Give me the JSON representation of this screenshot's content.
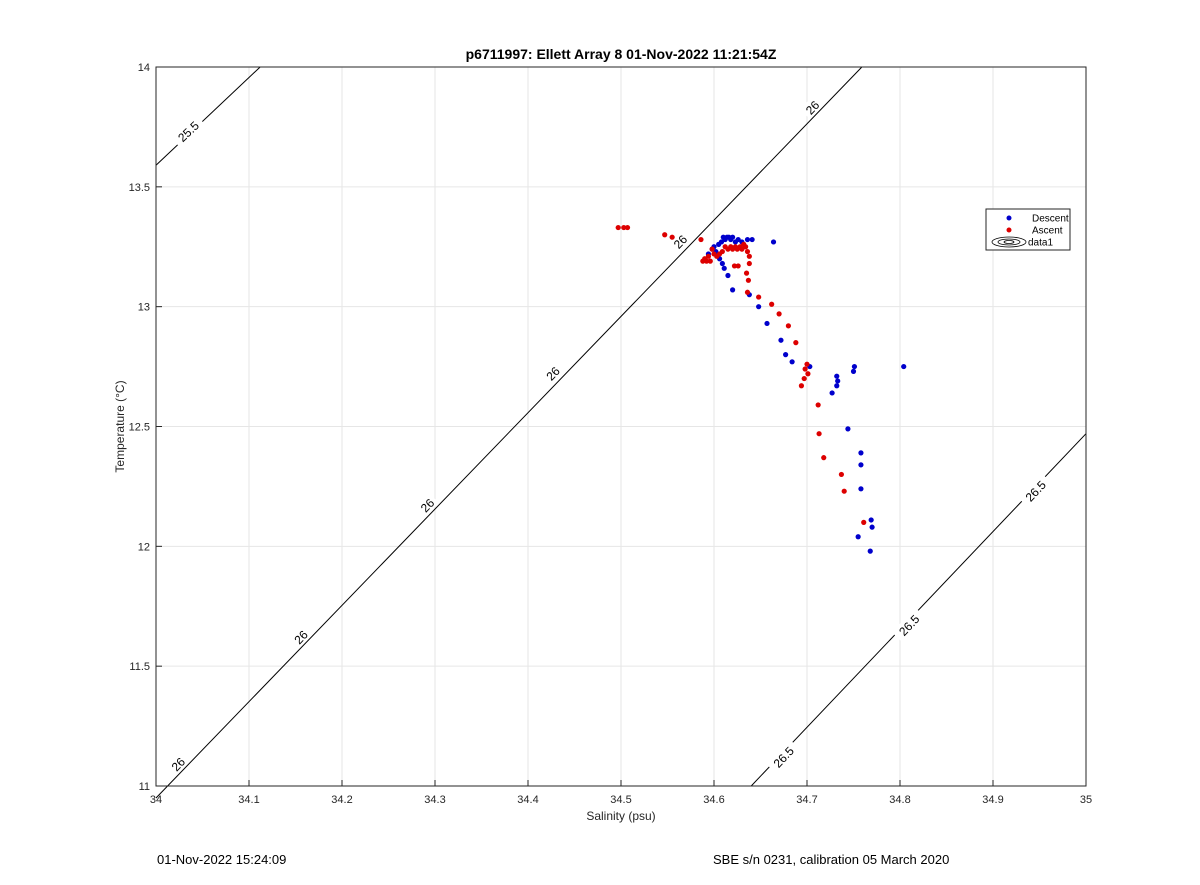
{
  "chart_data": {
    "type": "scatter",
    "title": "p6711997: Ellett Array 8 01-Nov-2022 11:21:54Z",
    "xlabel": "Salinity (psu)",
    "ylabel": "Temperature (°C)",
    "xlim": [
      34,
      35
    ],
    "ylim": [
      11,
      14
    ],
    "xticks": [
      "34",
      "34.1",
      "34.2",
      "34.3",
      "34.4",
      "34.5",
      "34.6",
      "34.7",
      "34.8",
      "34.9",
      "35"
    ],
    "yticks": [
      "11",
      "11.5",
      "12",
      "12.5",
      "13",
      "13.5",
      "14"
    ],
    "grid": true,
    "legend_position": "right",
    "legend": [
      "Descent",
      "Ascent",
      "data1"
    ],
    "series": [
      {
        "name": "Descent",
        "color": "#0000cc",
        "points": [
          [
            34.594,
            13.22
          ],
          [
            34.598,
            13.24
          ],
          [
            34.6,
            13.25
          ],
          [
            34.602,
            13.23
          ],
          [
            34.605,
            13.26
          ],
          [
            34.608,
            13.27
          ],
          [
            34.61,
            13.29
          ],
          [
            34.612,
            13.28
          ],
          [
            34.614,
            13.29
          ],
          [
            34.616,
            13.29
          ],
          [
            34.618,
            13.28
          ],
          [
            34.62,
            13.29
          ],
          [
            34.623,
            13.27
          ],
          [
            34.626,
            13.28
          ],
          [
            34.63,
            13.27
          ],
          [
            34.636,
            13.28
          ],
          [
            34.641,
            13.28
          ],
          [
            34.664,
            13.27
          ],
          [
            34.606,
            13.2
          ],
          [
            34.609,
            13.18
          ],
          [
            34.611,
            13.16
          ],
          [
            34.615,
            13.13
          ],
          [
            34.62,
            13.07
          ],
          [
            34.638,
            13.05
          ],
          [
            34.648,
            13.0
          ],
          [
            34.657,
            12.93
          ],
          [
            34.672,
            12.86
          ],
          [
            34.677,
            12.8
          ],
          [
            34.684,
            12.77
          ],
          [
            34.703,
            12.75
          ],
          [
            34.732,
            12.71
          ],
          [
            34.733,
            12.69
          ],
          [
            34.732,
            12.67
          ],
          [
            34.727,
            12.64
          ],
          [
            34.751,
            12.75
          ],
          [
            34.75,
            12.73
          ],
          [
            34.804,
            12.75
          ],
          [
            34.744,
            12.49
          ],
          [
            34.758,
            12.39
          ],
          [
            34.758,
            12.34
          ],
          [
            34.758,
            12.24
          ],
          [
            34.769,
            12.11
          ],
          [
            34.77,
            12.08
          ],
          [
            34.755,
            12.04
          ],
          [
            34.768,
            11.98
          ]
        ]
      },
      {
        "name": "Ascent",
        "color": "#dd0000",
        "points": [
          [
            34.497,
            13.33
          ],
          [
            34.503,
            13.33
          ],
          [
            34.507,
            13.33
          ],
          [
            34.547,
            13.3
          ],
          [
            34.555,
            13.29
          ],
          [
            34.586,
            13.28
          ],
          [
            34.588,
            13.19
          ],
          [
            34.59,
            13.2
          ],
          [
            34.592,
            13.19
          ],
          [
            34.594,
            13.21
          ],
          [
            34.596,
            13.19
          ],
          [
            34.598,
            13.24
          ],
          [
            34.6,
            13.22
          ],
          [
            34.603,
            13.21
          ],
          [
            34.606,
            13.22
          ],
          [
            34.609,
            13.23
          ],
          [
            34.612,
            13.25
          ],
          [
            34.615,
            13.24
          ],
          [
            34.618,
            13.25
          ],
          [
            34.62,
            13.24
          ],
          [
            34.623,
            13.25
          ],
          [
            34.625,
            13.24
          ],
          [
            34.628,
            13.25
          ],
          [
            34.63,
            13.24
          ],
          [
            34.632,
            13.26
          ],
          [
            34.634,
            13.25
          ],
          [
            34.636,
            13.23
          ],
          [
            34.638,
            13.21
          ],
          [
            34.622,
            13.17
          ],
          [
            34.626,
            13.17
          ],
          [
            34.638,
            13.18
          ],
          [
            34.635,
            13.14
          ],
          [
            34.637,
            13.11
          ],
          [
            34.636,
            13.06
          ],
          [
            34.648,
            13.04
          ],
          [
            34.662,
            13.01
          ],
          [
            34.67,
            12.97
          ],
          [
            34.68,
            12.92
          ],
          [
            34.688,
            12.85
          ],
          [
            34.7,
            12.76
          ],
          [
            34.698,
            12.74
          ],
          [
            34.701,
            12.72
          ],
          [
            34.697,
            12.7
          ],
          [
            34.694,
            12.67
          ],
          [
            34.712,
            12.59
          ],
          [
            34.713,
            12.47
          ],
          [
            34.718,
            12.37
          ],
          [
            34.737,
            12.3
          ],
          [
            34.74,
            12.23
          ],
          [
            34.761,
            12.1
          ]
        ]
      }
    ],
    "contours": [
      {
        "value": "25.5",
        "start": [
          34.0,
          13.59
        ],
        "end": [
          34.112,
          14.0
        ],
        "labels": [
          [
            34.035,
            13.73
          ]
        ]
      },
      {
        "value": "26",
        "start": [
          34.0,
          10.95
        ],
        "end": [
          34.759,
          14.0
        ],
        "labels": [
          [
            34.024,
            11.09
          ],
          [
            34.156,
            11.62
          ],
          [
            34.292,
            12.17
          ],
          [
            34.428,
            12.72
          ],
          [
            34.427,
            12.72
          ],
          [
            34.564,
            13.27
          ],
          [
            34.706,
            13.83
          ]
        ]
      },
      {
        "value": "26.5",
        "start": [
          34.64,
          11.0
        ],
        "end": [
          35.0,
          12.47
        ],
        "labels": [
          [
            34.675,
            11.12
          ],
          [
            34.81,
            11.67
          ],
          [
            34.946,
            12.23
          ]
        ]
      }
    ],
    "contour_label_texts": [
      "25.5",
      "26",
      "26",
      "26",
      "26",
      "26",
      "26",
      "26",
      "26.5",
      "26.5",
      "26.5"
    ]
  },
  "footer": {
    "left": "01-Nov-2022 15:24:09",
    "right": "SBE s/n 0231, calibration 05 March 2020"
  }
}
